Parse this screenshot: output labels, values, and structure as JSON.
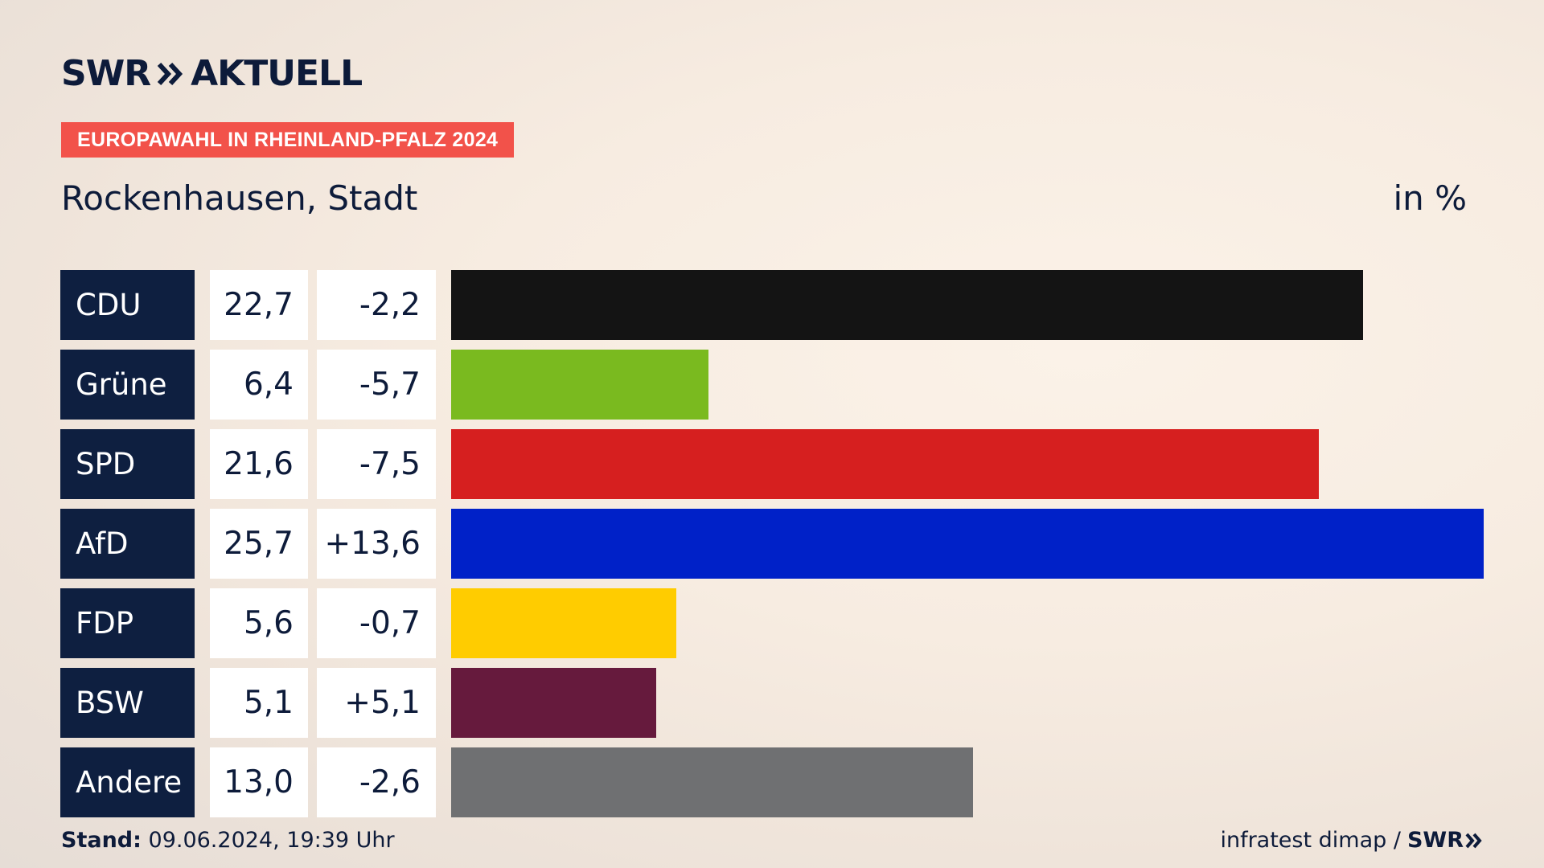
{
  "header": {
    "logo_text": "SWR",
    "logo_suffix": "AKTUELL",
    "badge": "EUROPAWAHL IN RHEINLAND-PFALZ 2024",
    "subtitle": "Rockenhausen, Stadt",
    "unit": "in %"
  },
  "chart_data": {
    "type": "bar",
    "orientation": "horizontal",
    "categories": [
      "CDU",
      "Grüne",
      "SPD",
      "AfD",
      "FDP",
      "BSW",
      "Andere"
    ],
    "values": [
      22.7,
      6.4,
      21.6,
      25.7,
      5.6,
      5.1,
      13.0
    ],
    "value_labels": [
      "22,7",
      "6,4",
      "21,6",
      "25,7",
      "5,6",
      "5,1",
      "13,0"
    ],
    "changes": [
      "-2,2",
      "-5,7",
      "-7,5",
      "+13,6",
      "-0,7",
      "+5,1",
      "-2,6"
    ],
    "colors": [
      "#141414",
      "#7aba1f",
      "#d61f1f",
      "#0021c8",
      "#ffcc00",
      "#661a3d",
      "#6f7072"
    ],
    "title": "Rockenhausen, Stadt",
    "unit": "in %"
  },
  "footer": {
    "stand_label": "Stand:",
    "stand_value": "09.06.2024, 19:39 Uhr",
    "source": "infratest dimap /",
    "source_logo": "SWR"
  }
}
